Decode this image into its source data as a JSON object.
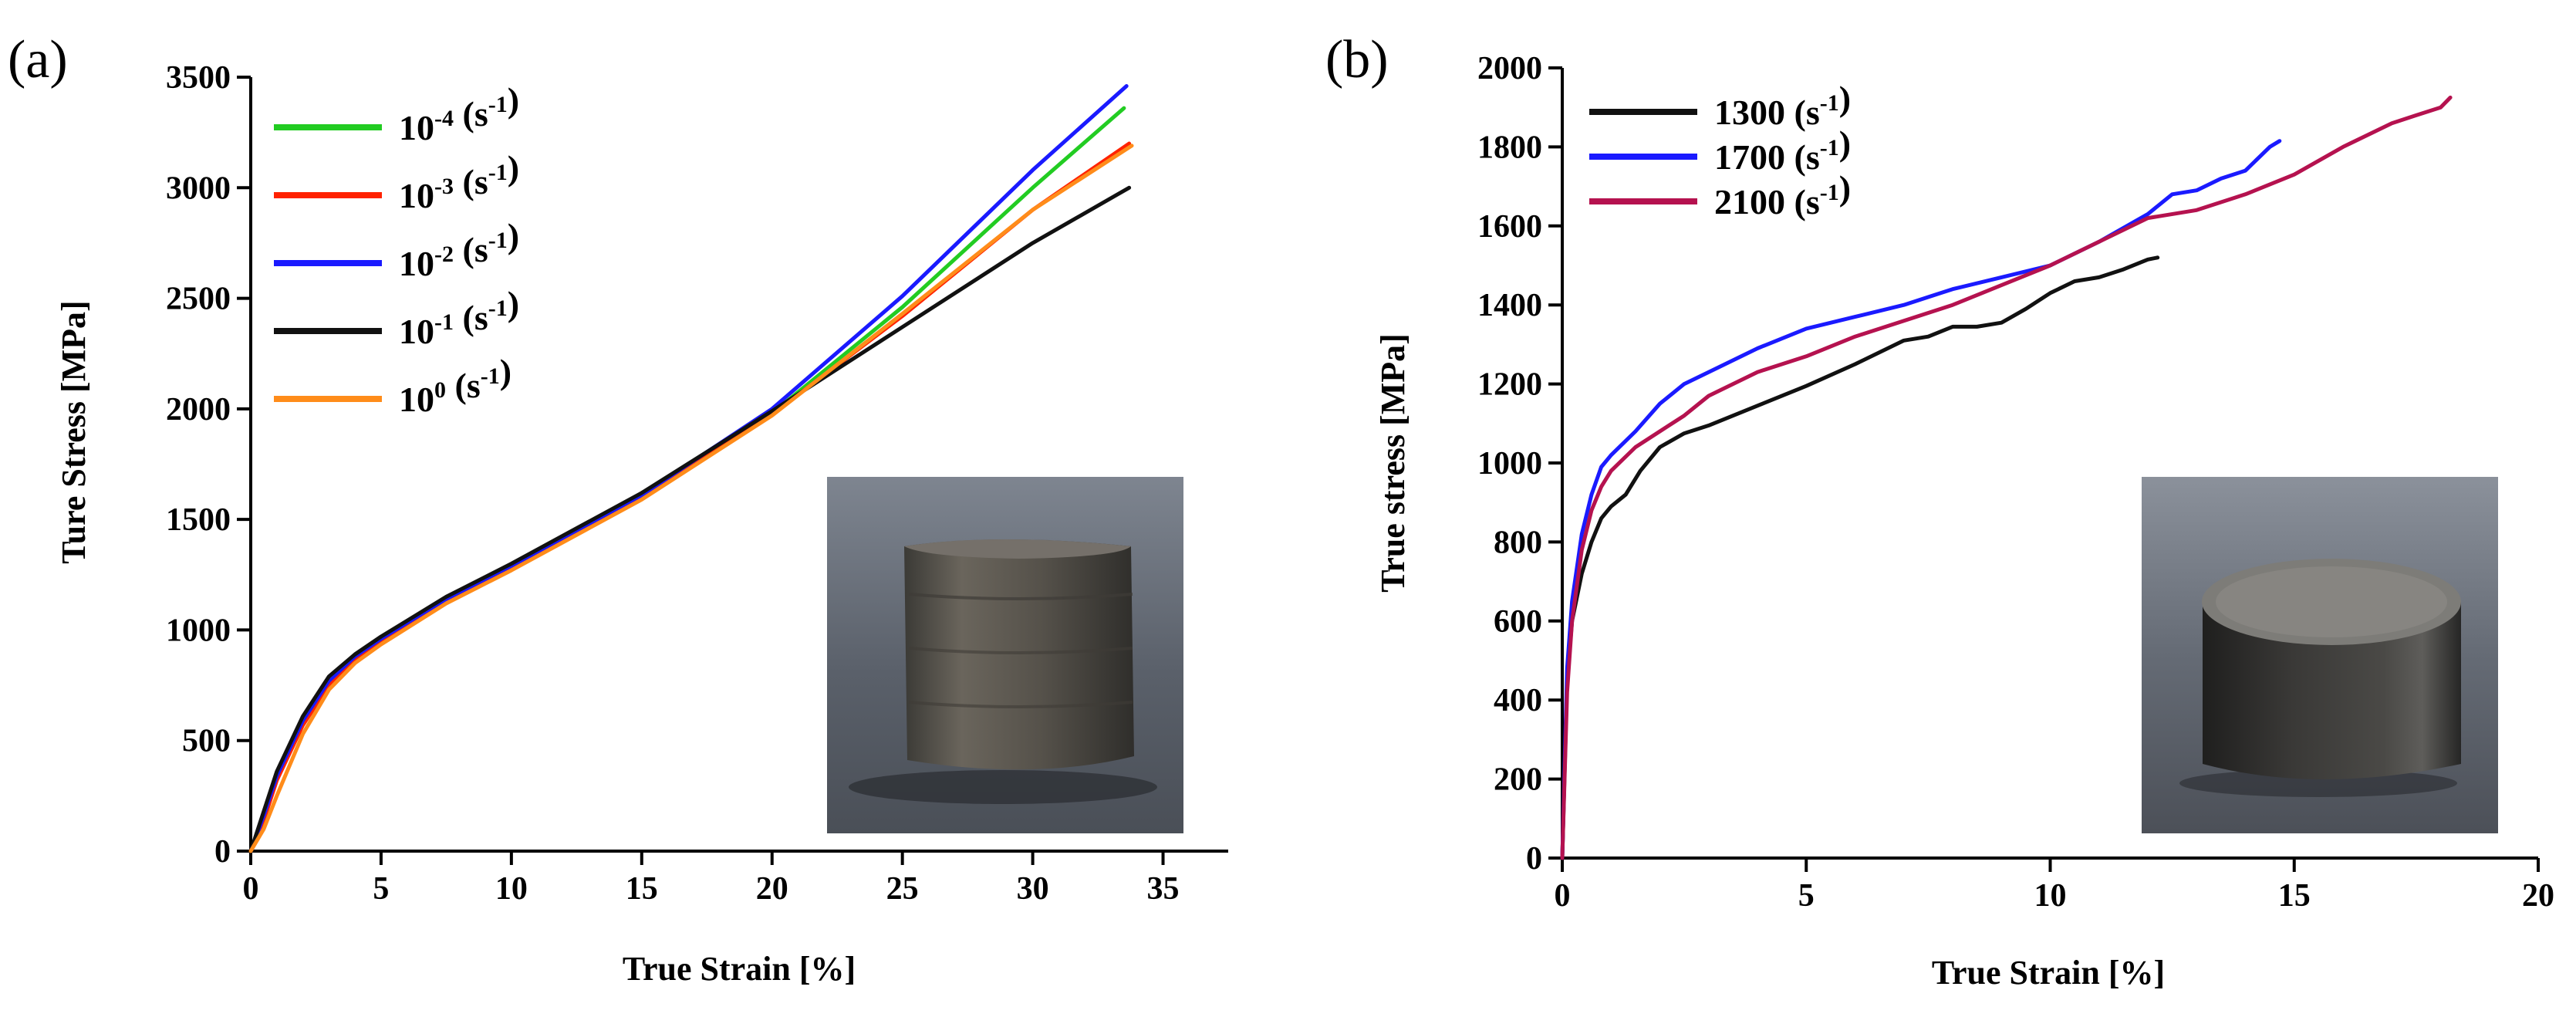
{
  "chart_data": [
    {
      "panel_label": "(a)",
      "type": "line",
      "xlabel": "True Strain [%]",
      "ylabel": "Ture Stress [MPa]",
      "xlim": [
        0,
        37.5
      ],
      "ylim": [
        0,
        3500
      ],
      "xticks": [
        0,
        5,
        10,
        15,
        20,
        25,
        30,
        35
      ],
      "yticks": [
        0,
        500,
        1000,
        1500,
        2000,
        2500,
        3000,
        3500
      ],
      "legend_position": "top-left",
      "series": [
        {
          "name": "10-4 (s-1)",
          "label_base": "10",
          "label_exp": "-4",
          "label_rest": " (s",
          "label_rest_exp": "-1",
          "label_end": ")",
          "color": "#22cc22",
          "x": [
            0,
            0.5,
            1,
            2,
            3,
            4,
            5,
            7.5,
            10,
            15,
            20,
            25,
            30,
            33.5
          ],
          "y": [
            0,
            150,
            330,
            580,
            760,
            870,
            950,
            1130,
            1280,
            1600,
            1980,
            2460,
            3000,
            3360
          ]
        },
        {
          "name": "10-3 (s-1)",
          "label_base": "10",
          "label_exp": "-3",
          "label_rest": " (s",
          "label_rest_exp": "-1",
          "label_end": ")",
          "color": "#ff2200",
          "x": [
            0,
            0.5,
            1,
            2,
            3,
            4,
            5,
            7.5,
            10,
            15,
            20,
            25,
            30,
            33.7
          ],
          "y": [
            0,
            140,
            320,
            570,
            750,
            865,
            945,
            1125,
            1275,
            1595,
            1975,
            2420,
            2900,
            3200
          ]
        },
        {
          "name": "10-2 (s-1)",
          "label_base": "10",
          "label_exp": "-2",
          "label_rest": " (s",
          "label_rest_exp": "-1",
          "label_end": ")",
          "color": "#1a1aff",
          "x": [
            0,
            0.5,
            1,
            2,
            3,
            4,
            5,
            7.5,
            10,
            15,
            20,
            25,
            30,
            33.6
          ],
          "y": [
            0,
            160,
            340,
            590,
            770,
            880,
            960,
            1140,
            1290,
            1610,
            2000,
            2510,
            3080,
            3460
          ]
        },
        {
          "name": "10-1 (s-1)",
          "label_base": "10",
          "label_exp": "-1",
          "label_rest": " (s",
          "label_rest_exp": "-1",
          "label_end": ")",
          "color": "#111111",
          "x": [
            0,
            0.5,
            1,
            2,
            3,
            4,
            5,
            7.5,
            10,
            15,
            20,
            25,
            30,
            33.7
          ],
          "y": [
            0,
            180,
            360,
            610,
            790,
            890,
            970,
            1150,
            1300,
            1620,
            1990,
            2370,
            2750,
            3000
          ]
        },
        {
          "name": "100 (s-1)",
          "label_base": "10",
          "label_exp": "0",
          "label_rest": "  (s",
          "label_rest_exp": "-1",
          "label_end": ")",
          "color": "#ff8c1a",
          "x": [
            0,
            0.5,
            1,
            2,
            3,
            4,
            5,
            7.5,
            10,
            15,
            20,
            25,
            30,
            33.8
          ],
          "y": [
            0,
            100,
            250,
            530,
            730,
            850,
            935,
            1120,
            1270,
            1590,
            1970,
            2430,
            2900,
            3190
          ]
        }
      ]
    },
    {
      "panel_label": "(b)",
      "type": "line",
      "xlabel": "True Strain [%]",
      "ylabel": "True stress [MPa]",
      "xlim": [
        0,
        20
      ],
      "ylim": [
        0,
        2000
      ],
      "xticks": [
        0,
        5,
        10,
        15,
        20
      ],
      "yticks": [
        0,
        200,
        400,
        600,
        800,
        1000,
        1200,
        1400,
        1600,
        1800,
        2000
      ],
      "legend_position": "top-left",
      "series": [
        {
          "name": "1300 (s-1)",
          "label_base": "1300",
          "label_exp": "",
          "label_rest": " (s",
          "label_rest_exp": "-1",
          "label_end": ")",
          "color": "#111111",
          "x": [
            0,
            0.1,
            0.2,
            0.4,
            0.6,
            0.8,
            1.0,
            1.3,
            1.6,
            2.0,
            2.5,
            3,
            4,
            5,
            6,
            7,
            7.5,
            8,
            8.5,
            9,
            9.5,
            10,
            10.5,
            11,
            11.5,
            12,
            12.2
          ],
          "y": [
            0,
            450,
            600,
            720,
            800,
            860,
            890,
            920,
            980,
            1040,
            1075,
            1095,
            1145,
            1195,
            1250,
            1310,
            1320,
            1345,
            1345,
            1355,
            1390,
            1430,
            1460,
            1470,
            1490,
            1515,
            1520
          ]
        },
        {
          "name": "1700 (s-1)",
          "label_base": "1700",
          "label_exp": "",
          "label_rest": " (s",
          "label_rest_exp": "-1",
          "label_end": ")",
          "color": "#1a1aff",
          "x": [
            0,
            0.1,
            0.2,
            0.4,
            0.6,
            0.8,
            1.0,
            1.5,
            2.0,
            2.5,
            3,
            4,
            5,
            6,
            7,
            8,
            9,
            10,
            11,
            12,
            12.5,
            13,
            13.5,
            14,
            14.5,
            14.7
          ],
          "y": [
            0,
            480,
            650,
            820,
            920,
            990,
            1020,
            1080,
            1150,
            1200,
            1230,
            1290,
            1340,
            1370,
            1400,
            1440,
            1470,
            1500,
            1560,
            1630,
            1680,
            1690,
            1720,
            1740,
            1800,
            1815
          ]
        },
        {
          "name": "2100 (s-1)",
          "label_base": "2100",
          "label_exp": "",
          "label_rest": " (s",
          "label_rest_exp": "-1",
          "label_end": ")",
          "color": "#b5124f",
          "x": [
            0,
            0.1,
            0.2,
            0.4,
            0.6,
            0.8,
            1.0,
            1.5,
            2.0,
            2.5,
            3,
            4,
            5,
            6,
            7,
            8,
            9,
            10,
            11,
            12,
            13,
            14,
            15,
            16,
            17,
            17.5,
            18,
            18.2
          ],
          "y": [
            0,
            420,
            600,
            780,
            880,
            940,
            980,
            1040,
            1080,
            1120,
            1170,
            1230,
            1270,
            1320,
            1360,
            1400,
            1450,
            1500,
            1560,
            1620,
            1640,
            1680,
            1730,
            1800,
            1860,
            1880,
            1900,
            1925
          ]
        }
      ]
    }
  ]
}
